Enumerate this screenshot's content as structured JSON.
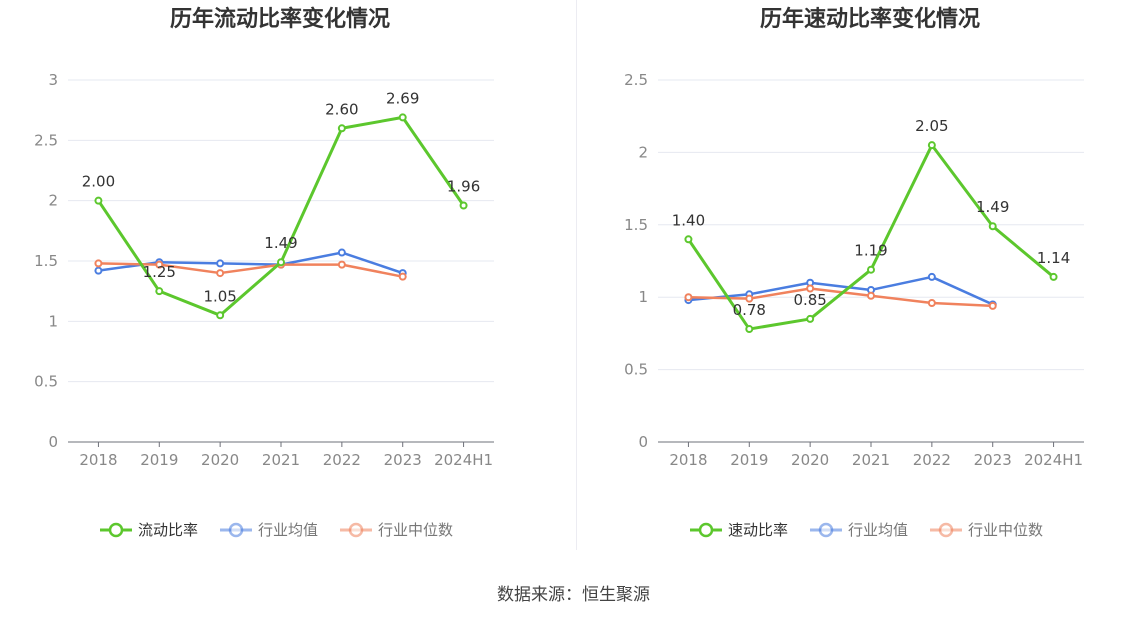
{
  "charts": [
    {
      "type": "line",
      "title": "历年流动比率变化情况",
      "categories": [
        "2018",
        "2019",
        "2020",
        "2021",
        "2022",
        "2023",
        "2024H1"
      ],
      "ylim": [
        0,
        3
      ],
      "yticks": [
        0,
        0.5,
        1,
        1.5,
        2,
        2.5,
        3
      ],
      "grid": true,
      "legend_position": "bottom",
      "series": [
        {
          "name": "流动比率",
          "color": "#5cc72d",
          "values": [
            2.0,
            1.25,
            1.05,
            1.49,
            2.6,
            2.69,
            1.96
          ],
          "labels": [
            "2.00",
            "1.25",
            "1.05",
            "1.49",
            "2.60",
            "2.69",
            "1.96"
          ]
        },
        {
          "name": "行业均值",
          "color": "#4a7de0",
          "values": [
            1.42,
            1.49,
            1.48,
            1.47,
            1.57,
            1.4,
            null
          ]
        },
        {
          "name": "行业中位数",
          "color": "#f0825d",
          "values": [
            1.48,
            1.47,
            1.4,
            1.47,
            1.47,
            1.37,
            null
          ]
        }
      ]
    },
    {
      "type": "line",
      "title": "历年速动比率变化情况",
      "categories": [
        "2018",
        "2019",
        "2020",
        "2021",
        "2022",
        "2023",
        "2024H1"
      ],
      "ylim": [
        0,
        2.5
      ],
      "yticks": [
        0,
        0.5,
        1,
        1.5,
        2,
        2.5
      ],
      "grid": true,
      "legend_position": "bottom",
      "series": [
        {
          "name": "速动比率",
          "color": "#5cc72d",
          "values": [
            1.4,
            0.78,
            0.85,
            1.19,
            2.05,
            1.49,
            1.14
          ],
          "labels": [
            "1.40",
            "0.78",
            "0.85",
            "1.19",
            "2.05",
            "1.49",
            "1.14"
          ]
        },
        {
          "name": "行业均值",
          "color": "#4a7de0",
          "values": [
            0.98,
            1.02,
            1.1,
            1.05,
            1.14,
            0.95,
            null
          ]
        },
        {
          "name": "行业中位数",
          "color": "#f0825d",
          "values": [
            1.0,
            0.99,
            1.06,
            1.01,
            0.96,
            0.94,
            null
          ]
        }
      ]
    }
  ],
  "chart_data": [
    {
      "type": "line",
      "title": "历年流动比率变化情况",
      "categories": [
        "2018",
        "2019",
        "2020",
        "2021",
        "2022",
        "2023",
        "2024H1"
      ],
      "ylim": [
        0,
        3
      ],
      "series": [
        {
          "name": "流动比率",
          "values": [
            2.0,
            1.25,
            1.05,
            1.49,
            2.6,
            2.69,
            1.96
          ]
        },
        {
          "name": "行业均值",
          "values": [
            1.42,
            1.49,
            1.48,
            1.47,
            1.57,
            1.4,
            null
          ]
        },
        {
          "name": "行业中位数",
          "values": [
            1.48,
            1.47,
            1.4,
            1.47,
            1.47,
            1.37,
            null
          ]
        }
      ]
    },
    {
      "type": "line",
      "title": "历年速动比率变化情况",
      "categories": [
        "2018",
        "2019",
        "2020",
        "2021",
        "2022",
        "2023",
        "2024H1"
      ],
      "ylim": [
        0,
        2.5
      ],
      "series": [
        {
          "name": "速动比率",
          "values": [
            1.4,
            0.78,
            0.85,
            1.19,
            2.05,
            1.49,
            1.14
          ]
        },
        {
          "name": "行业均值",
          "values": [
            0.98,
            1.02,
            1.1,
            1.05,
            1.14,
            0.95,
            null
          ]
        },
        {
          "name": "行业中位数",
          "values": [
            1.0,
            0.99,
            1.06,
            1.01,
            0.96,
            0.94,
            null
          ]
        }
      ]
    }
  ],
  "footer": {
    "source": "数据来源：恒生聚源"
  }
}
